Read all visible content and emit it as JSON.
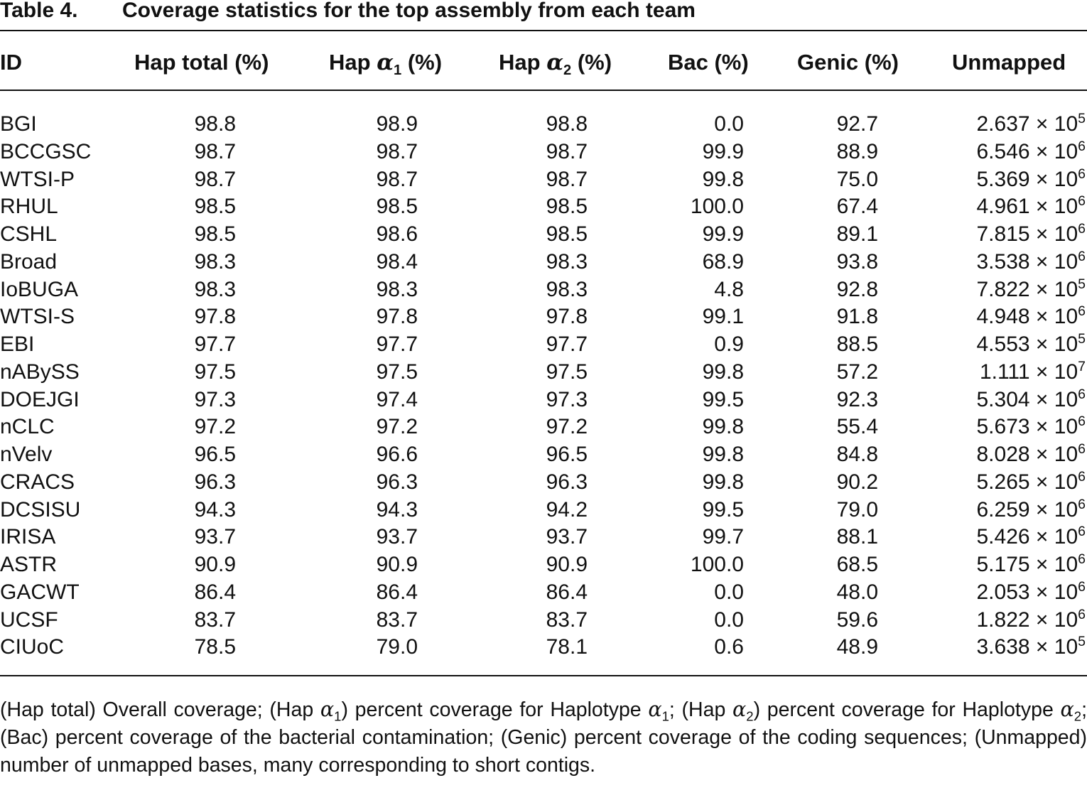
{
  "table": {
    "label": "Table 4.",
    "title": "Coverage statistics for the top assembly from each team",
    "columns": [
      {
        "text": "ID"
      },
      {
        "text": "Hap total (%)"
      },
      {
        "text": "Hap ",
        "greek": "α",
        "sub": "1",
        "after": " (%)"
      },
      {
        "text": "Hap ",
        "greek": "α",
        "sub": "2",
        "after": " (%)"
      },
      {
        "text": "Bac (%)"
      },
      {
        "text": "Genic (%)"
      },
      {
        "text": "Unmapped"
      }
    ],
    "rows": [
      [
        "BGI",
        "98.8",
        "98.9",
        "98.8",
        "0.0",
        "92.7",
        {
          "base": "2.637 × 10",
          "exp": "5"
        }
      ],
      [
        "BCCGSC",
        "98.7",
        "98.7",
        "98.7",
        "99.9",
        "88.9",
        {
          "base": "6.546 × 10",
          "exp": "6"
        }
      ],
      [
        "WTSI-P",
        "98.7",
        "98.7",
        "98.7",
        "99.8",
        "75.0",
        {
          "base": "5.369 × 10",
          "exp": "6"
        }
      ],
      [
        "RHUL",
        "98.5",
        "98.5",
        "98.5",
        "100.0",
        "67.4",
        {
          "base": "4.961 × 10",
          "exp": "6"
        }
      ],
      [
        "CSHL",
        "98.5",
        "98.6",
        "98.5",
        "99.9",
        "89.1",
        {
          "base": "7.815 × 10",
          "exp": "6"
        }
      ],
      [
        "Broad",
        "98.3",
        "98.4",
        "98.3",
        "68.9",
        "93.8",
        {
          "base": "3.538 × 10",
          "exp": "6"
        }
      ],
      [
        "IoBUGA",
        "98.3",
        "98.3",
        "98.3",
        "4.8",
        "92.8",
        {
          "base": "7.822 × 10",
          "exp": "5"
        }
      ],
      [
        "WTSI-S",
        "97.8",
        "97.8",
        "97.8",
        "99.1",
        "91.8",
        {
          "base": "4.948 × 10",
          "exp": "6"
        }
      ],
      [
        "EBI",
        "97.7",
        "97.7",
        "97.7",
        "0.9",
        "88.5",
        {
          "base": "4.553 × 10",
          "exp": "5"
        }
      ],
      [
        "nABySS",
        "97.5",
        "97.5",
        "97.5",
        "99.8",
        "57.2",
        {
          "base": "1.111 × 10",
          "exp": "7"
        }
      ],
      [
        "DOEJGI",
        "97.3",
        "97.4",
        "97.3",
        "99.5",
        "92.3",
        {
          "base": "5.304 × 10",
          "exp": "6"
        }
      ],
      [
        "nCLC",
        "97.2",
        "97.2",
        "97.2",
        "99.8",
        "55.4",
        {
          "base": "5.673 × 10",
          "exp": "6"
        }
      ],
      [
        "nVelv",
        "96.5",
        "96.6",
        "96.5",
        "99.8",
        "84.8",
        {
          "base": "8.028 × 10",
          "exp": "6"
        }
      ],
      [
        "CRACS",
        "96.3",
        "96.3",
        "96.3",
        "99.8",
        "90.2",
        {
          "base": "5.265 × 10",
          "exp": "6"
        }
      ],
      [
        "DCSISU",
        "94.3",
        "94.3",
        "94.2",
        "99.5",
        "79.0",
        {
          "base": "6.259 × 10",
          "exp": "6"
        }
      ],
      [
        "IRISA",
        "93.7",
        "93.7",
        "93.7",
        "99.7",
        "88.1",
        {
          "base": "5.426 × 10",
          "exp": "6"
        }
      ],
      [
        "ASTR",
        "90.9",
        "90.9",
        "90.9",
        "100.0",
        "68.5",
        {
          "base": "5.175 × 10",
          "exp": "6"
        }
      ],
      [
        "GACWT",
        "86.4",
        "86.4",
        "86.4",
        "0.0",
        "48.0",
        {
          "base": "2.053 × 10",
          "exp": "6"
        }
      ],
      [
        "UCSF",
        "83.7",
        "83.7",
        "83.7",
        "0.0",
        "59.6",
        {
          "base": "1.822 × 10",
          "exp": "6"
        }
      ],
      [
        "CIUoC",
        "78.5",
        "79.0",
        "78.1",
        "0.6",
        "48.9",
        {
          "base": "3.638 × 10",
          "exp": "5"
        }
      ]
    ],
    "footnote": [
      {
        "text": "(Hap total) Overall coverage; (Hap ",
        "greek": "α",
        "sub": "1"
      },
      {
        "text": ") percent coverage for Haplotype ",
        "greek": "α",
        "sub": "1"
      },
      {
        "text": "; (Hap ",
        "greek": "α",
        "sub": "2"
      },
      {
        "text": ") percent coverage for Haplotype ",
        "greek": "α",
        "sub": "2"
      },
      {
        "text": "; (Bac) percent coverage of the bacterial contamination; (Genic) percent coverage of the coding sequences; (Unmapped) number of unmapped bases, many corresponding to short contigs."
      }
    ]
  }
}
